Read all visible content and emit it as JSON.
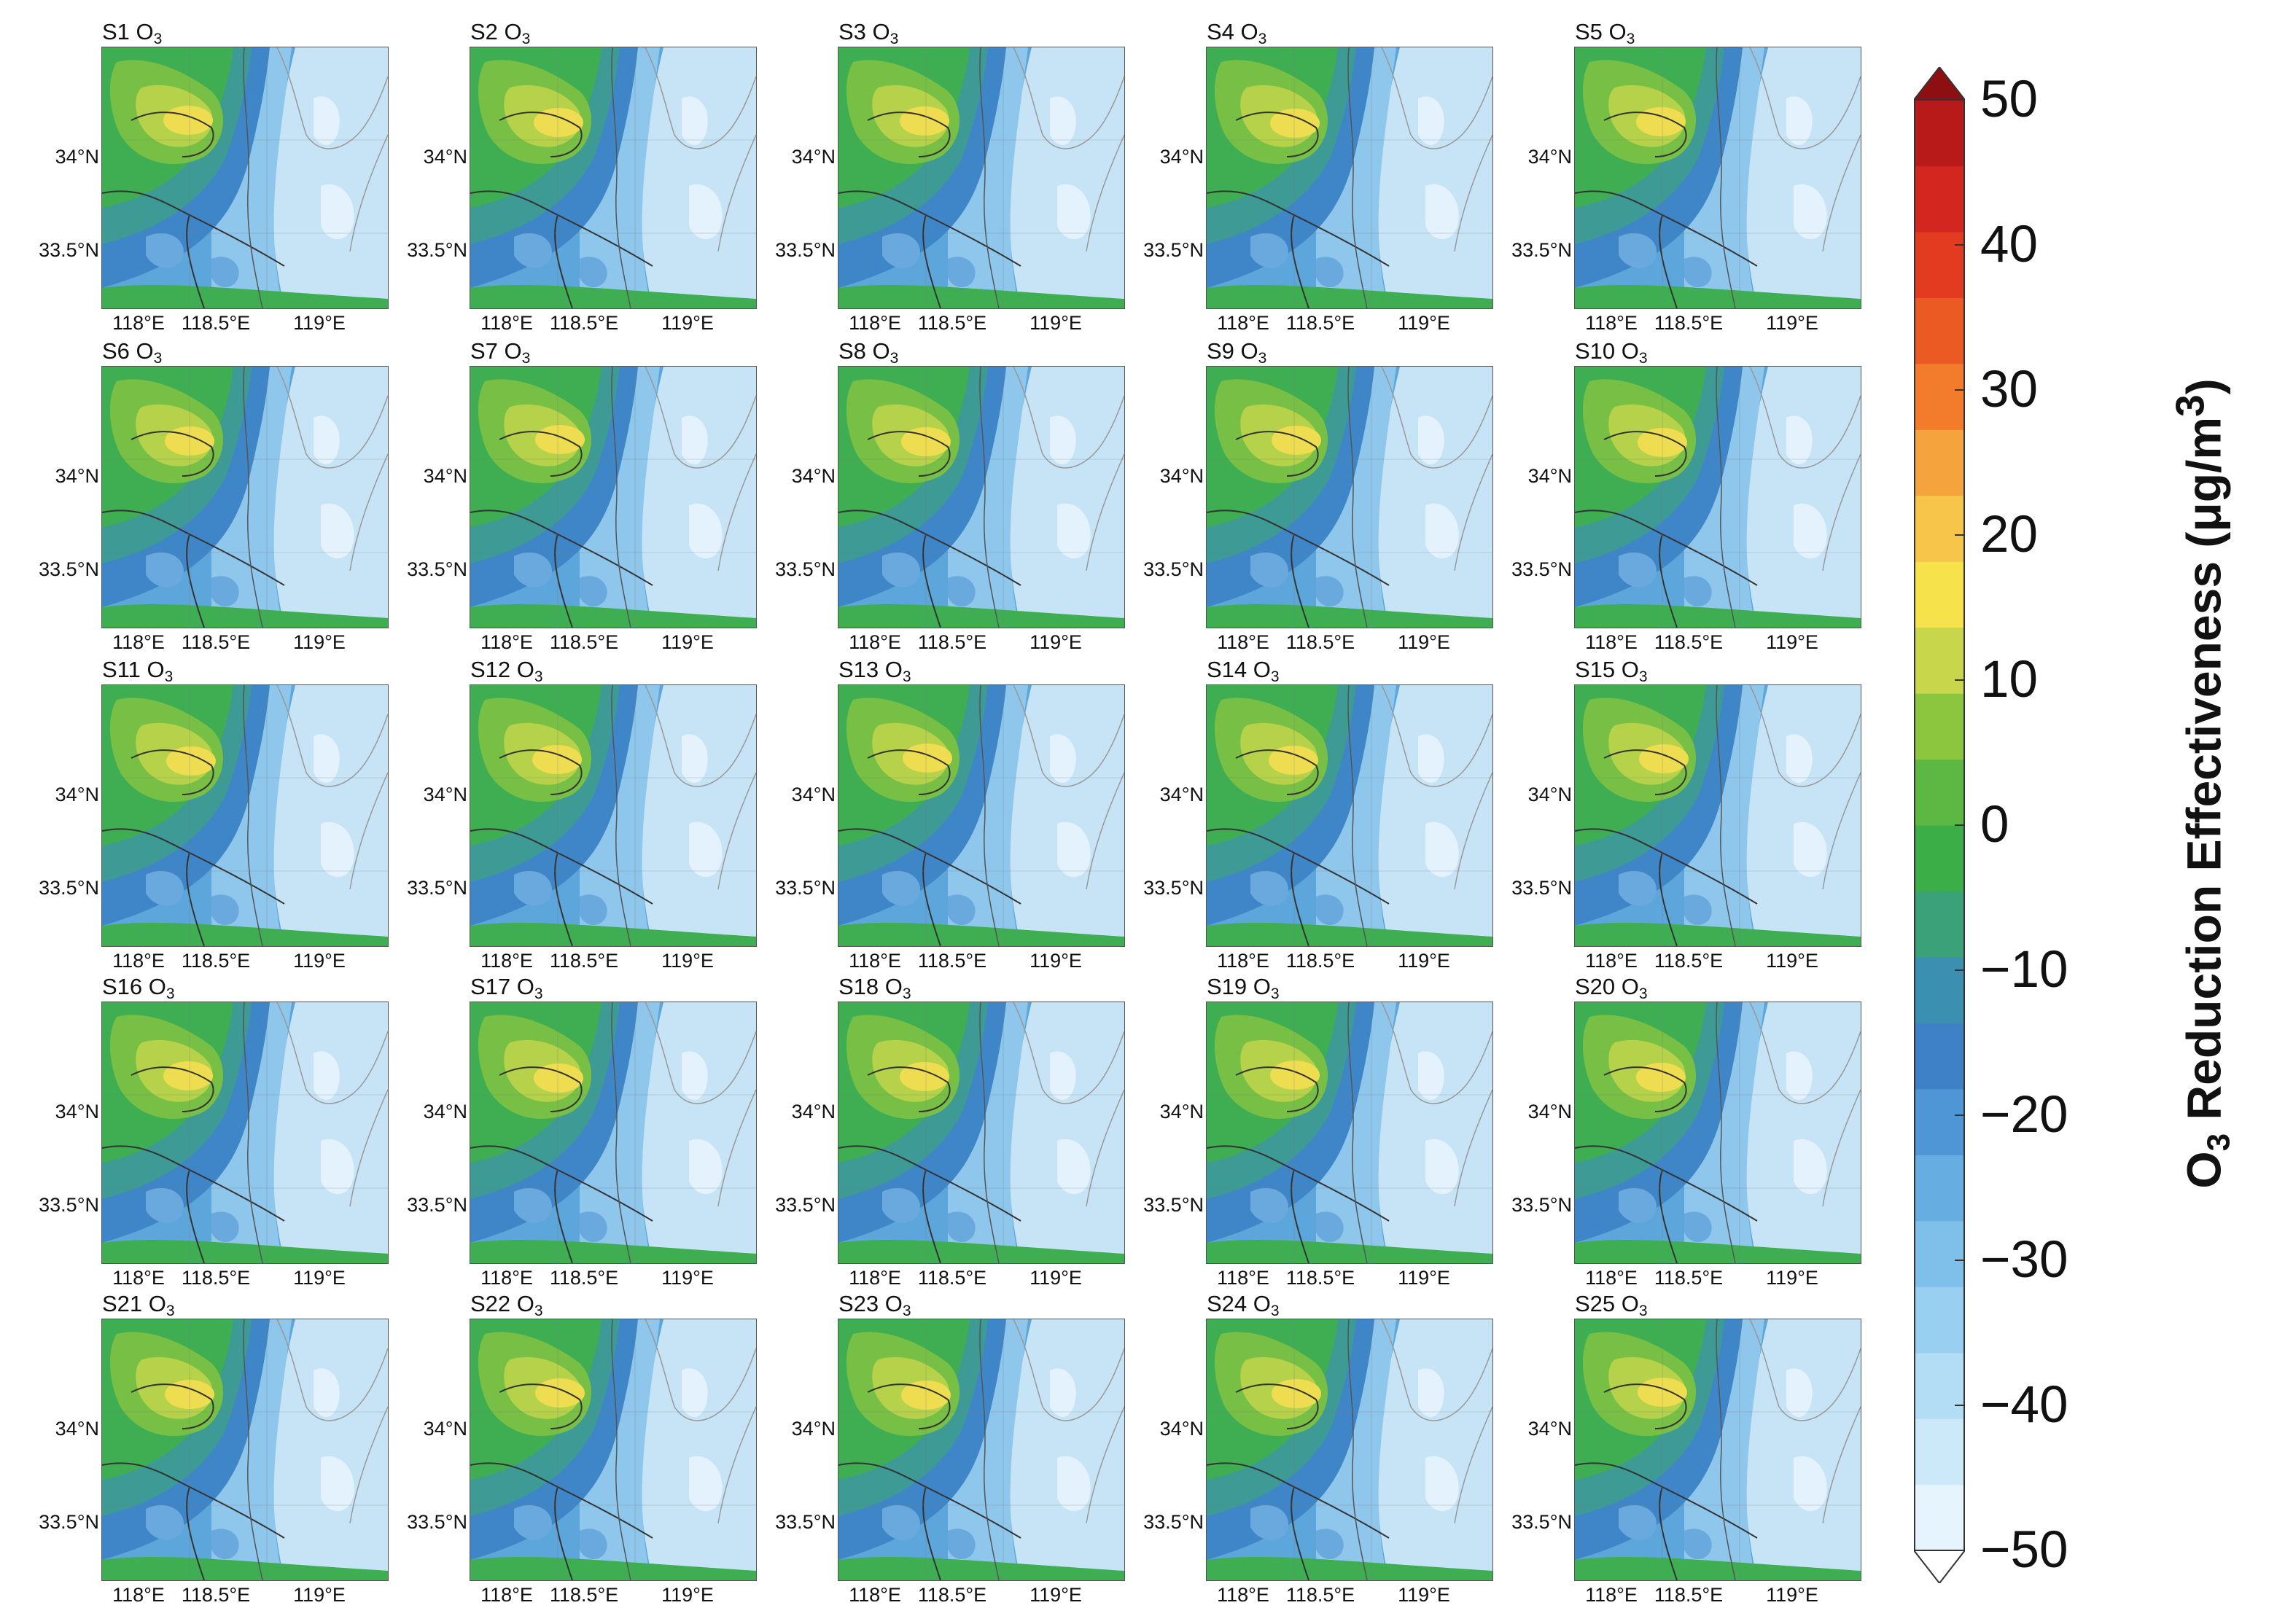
{
  "panels": [
    {
      "label": "S1",
      "species": "O",
      "subscript": "3"
    },
    {
      "label": "S2",
      "species": "O",
      "subscript": "3"
    },
    {
      "label": "S3",
      "species": "O",
      "subscript": "3"
    },
    {
      "label": "S4",
      "species": "O",
      "subscript": "3"
    },
    {
      "label": "S5",
      "species": "O",
      "subscript": "3"
    },
    {
      "label": "S6",
      "species": "O",
      "subscript": "3"
    },
    {
      "label": "S7",
      "species": "O",
      "subscript": "3"
    },
    {
      "label": "S8",
      "species": "O",
      "subscript": "3"
    },
    {
      "label": "S9",
      "species": "O",
      "subscript": "3"
    },
    {
      "label": "S10",
      "species": "O",
      "subscript": "3"
    },
    {
      "label": "S11",
      "species": "O",
      "subscript": "3"
    },
    {
      "label": "S12",
      "species": "O",
      "subscript": "3"
    },
    {
      "label": "S13",
      "species": "O",
      "subscript": "3"
    },
    {
      "label": "S14",
      "species": "O",
      "subscript": "3"
    },
    {
      "label": "S15",
      "species": "O",
      "subscript": "3"
    },
    {
      "label": "S16",
      "species": "O",
      "subscript": "3"
    },
    {
      "label": "S17",
      "species": "O",
      "subscript": "3"
    },
    {
      "label": "S18",
      "species": "O",
      "subscript": "3"
    },
    {
      "label": "S19",
      "species": "O",
      "subscript": "3"
    },
    {
      "label": "S20",
      "species": "O",
      "subscript": "3"
    },
    {
      "label": "S21",
      "species": "O",
      "subscript": "3"
    },
    {
      "label": "S22",
      "species": "O",
      "subscript": "3"
    },
    {
      "label": "S23",
      "species": "O",
      "subscript": "3"
    },
    {
      "label": "S24",
      "species": "O",
      "subscript": "3"
    },
    {
      "label": "S25",
      "species": "O",
      "subscript": "3"
    }
  ],
  "axes": {
    "lat_ticks": [
      "34°N",
      "33.5°N"
    ],
    "lon_ticks": [
      "118°E",
      "118.5°E",
      "119°E"
    ]
  },
  "colorbar": {
    "title_prefix": "O",
    "title_subscript": "3",
    "title_main": " Reduction Effectiveness (μg/m",
    "title_superscript": "3",
    "title_suffix": ")",
    "ticks": [
      "50",
      "40",
      "30",
      "20",
      "10",
      "0",
      "−10",
      "−20",
      "−30",
      "−40",
      "−50"
    ],
    "range": [
      -50,
      50
    ],
    "interval": 5,
    "extend": "both",
    "colors": [
      "#e6f4fd",
      "#cce9f9",
      "#b3ddf5",
      "#99d0f1",
      "#7fc0ea",
      "#66ade2",
      "#4f96d6",
      "#3f81c7",
      "#3b8fb0",
      "#3aa178",
      "#3cae48",
      "#5cb843",
      "#8cc63f",
      "#c8d64b",
      "#f6e24a",
      "#f7c54a",
      "#f5a33c",
      "#f27c2b",
      "#ec5a23",
      "#e33b20",
      "#d2261e",
      "#b81a1a"
    ],
    "over_color": "#8e0f12",
    "under_color": "#ffffff"
  }
}
